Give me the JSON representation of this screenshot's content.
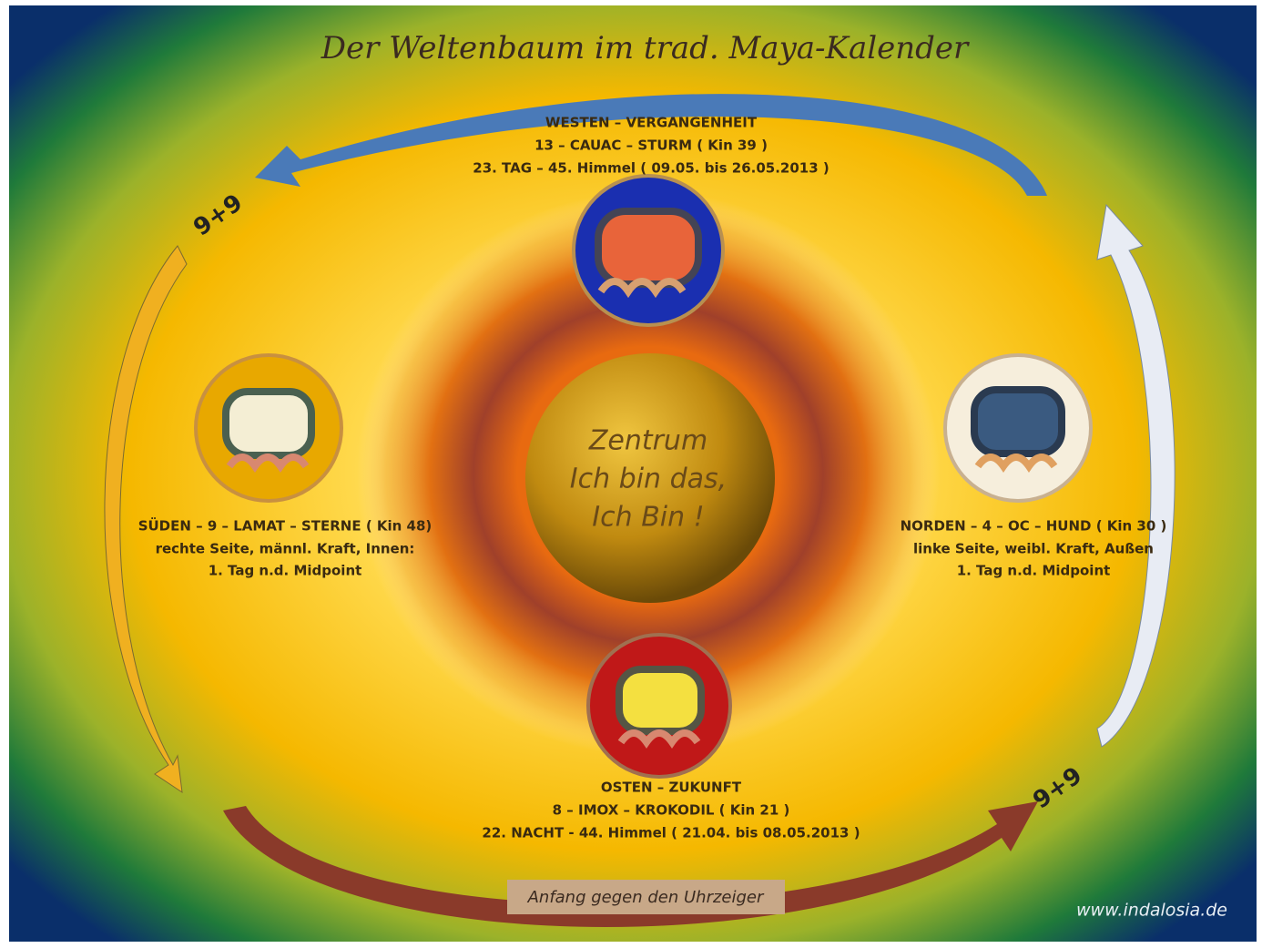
{
  "title": "Der Weltenbaum im trad. Maya-Kalender",
  "center": {
    "lines": [
      "Zentrum",
      "Ich bin das,",
      "Ich Bin !"
    ]
  },
  "nodes": [
    {
      "lines": [
        "WESTEN – VERGANGENHEIT",
        "13 – CAUAC – STURM ( Kin 39 )",
        "23. TAG – 45. Himmel  ( 09.05. bis 26.05.2013 )"
      ]
    },
    {
      "lines": [
        "SÜDEN  –  9 – LAMAT – STERNE ( Kin 48)",
        "rechte Seite, männl. Kraft, Innen:",
        "1. Tag n.d. Midpoint"
      ]
    },
    {
      "lines": [
        "NORDEN –  4 – OC – HUND ( Kin 30 )",
        "linke Seite, weibl. Kraft, Außen",
        "1. Tag n.d. Midpoint"
      ]
    },
    {
      "lines": [
        "OSTEN – ZUKUNFT",
        "8 – IMOX – KROKODIL  ( Kin 21  )",
        "22. NACHT  - 44. Himmel   ( 21.04. bis 08.05.2013 )"
      ]
    }
  ],
  "cycle_labels": [
    "9+9",
    "9+9"
  ],
  "note": "Anfang  gegen den Uhrzeiger",
  "credit": "www.indalosia.de"
}
